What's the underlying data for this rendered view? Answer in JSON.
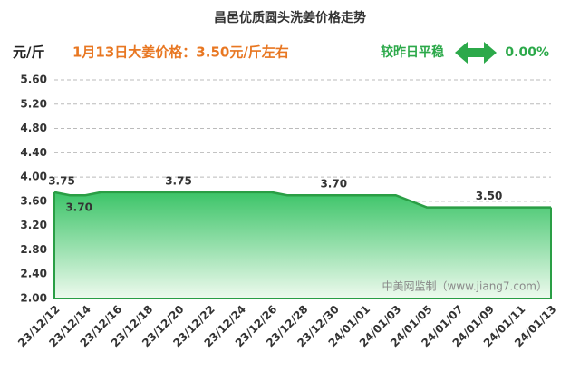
{
  "chart_data": {
    "type": "area",
    "title": "昌邑优质圆头洗姜价格走势",
    "y_label": "元/斤",
    "headline": "1月13日大姜价格：3.50元/斤左右",
    "change_label": "较昨日平稳",
    "change_value": "0.00%",
    "watermark": "中美网监制（www.jiang7.com）",
    "categories": [
      "23/12/12",
      null,
      "23/12/14",
      null,
      "23/12/16",
      null,
      "23/12/18",
      null,
      "23/12/20",
      null,
      "23/12/22",
      null,
      "23/12/24",
      null,
      "23/12/26",
      null,
      "23/12/28",
      null,
      "23/12/30",
      null,
      "24/01/01",
      null,
      "24/01/03",
      null,
      "24/01/05",
      null,
      "24/01/07",
      null,
      "24/01/09",
      null,
      "24/01/11",
      null,
      "24/01/13"
    ],
    "values": [
      3.75,
      3.7,
      3.7,
      3.75,
      3.75,
      3.75,
      3.75,
      3.75,
      3.75,
      3.75,
      3.75,
      3.75,
      3.75,
      3.75,
      3.75,
      3.7,
      3.7,
      3.7,
      3.7,
      3.7,
      3.7,
      3.7,
      3.7,
      3.6,
      3.5,
      3.5,
      3.5,
      3.5,
      3.5,
      3.5,
      3.5,
      3.5,
      3.5
    ],
    "value_labels": [
      "3.75",
      "3.70",
      null,
      null,
      null,
      null,
      null,
      null,
      "3.75",
      null,
      null,
      null,
      null,
      null,
      null,
      null,
      null,
      null,
      "3.70",
      null,
      null,
      null,
      null,
      null,
      null,
      null,
      null,
      null,
      "3.50",
      null,
      null,
      null,
      null
    ],
    "color": "#2a9e45",
    "ylim": [
      2.0,
      5.6
    ],
    "yticks": [
      {
        "value": 2.0,
        "label": "2.00"
      },
      {
        "value": 2.4,
        "label": "2.40"
      },
      {
        "value": 2.8,
        "label": "2.80"
      },
      {
        "value": 3.2,
        "label": "3.20"
      },
      {
        "value": 3.6,
        "label": "3.60"
      },
      {
        "value": 4.0,
        "label": "4.00"
      },
      {
        "value": 4.4,
        "label": "4.40"
      },
      {
        "value": 4.8,
        "label": "4.80"
      },
      {
        "value": 5.2,
        "label": "5.20"
      },
      {
        "value": 5.6,
        "label": "5.60"
      }
    ],
    "grid": true
  }
}
